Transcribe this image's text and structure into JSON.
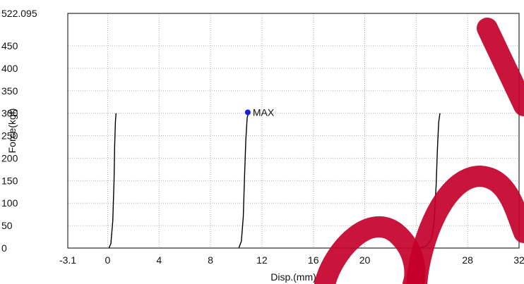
{
  "chart_data": {
    "type": "line",
    "xlabel": "Disp.(mm)",
    "ylabel": "Force(kgf)",
    "xlim": [
      -3.1,
      32
    ],
    "ylim": [
      0,
      522.095
    ],
    "x_ticks": [
      "-3.1",
      "0",
      "4",
      "8",
      "12",
      "16",
      "20",
      "24",
      "28",
      "32"
    ],
    "y_ticks": [
      "0",
      "50",
      "100",
      "150",
      "200",
      "250",
      "300",
      "350",
      "400",
      "450",
      "522.095"
    ],
    "grid": true,
    "colors": {
      "curve": "#000000",
      "max_marker": "#1a1aff",
      "grid": "#b0b0b0",
      "watermark": "#c4002a"
    },
    "series": [
      {
        "x": [
          0.1,
          0.25,
          0.4,
          0.5,
          0.55,
          0.6,
          0.65
        ],
        "y": [
          0,
          10,
          60,
          150,
          230,
          280,
          300
        ]
      },
      {
        "x": [
          10.2,
          10.4,
          10.55,
          10.65,
          10.75,
          10.85,
          10.95
        ],
        "y": [
          0,
          15,
          70,
          160,
          240,
          290,
          300
        ]
      },
      {
        "x": [
          24.3,
          24.8,
          25.2,
          25.4,
          25.55,
          25.65,
          25.75,
          25.85
        ],
        "y": [
          0,
          5,
          20,
          60,
          140,
          220,
          280,
          300
        ]
      }
    ],
    "annotations": [
      {
        "text": "MAX",
        "x": 10.9,
        "y": 302
      }
    ]
  }
}
